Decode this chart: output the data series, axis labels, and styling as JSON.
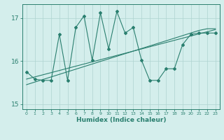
{
  "xlabel": "Humidex (Indice chaleur)",
  "ylabel": "",
  "x_values": [
    0,
    1,
    2,
    3,
    4,
    5,
    6,
    7,
    8,
    9,
    10,
    11,
    12,
    13,
    14,
    15,
    16,
    17,
    18,
    19,
    20,
    21,
    22,
    23
  ],
  "line1_y": [
    15.75,
    15.58,
    15.55,
    15.55,
    16.62,
    15.55,
    16.78,
    17.05,
    16.02,
    17.12,
    16.28,
    17.15,
    16.65,
    16.78,
    16.02,
    15.55,
    15.55,
    15.82,
    15.82,
    16.38,
    16.62,
    16.65,
    16.65,
    16.65
  ],
  "line2_y": [
    15.58,
    15.63,
    15.68,
    15.73,
    15.78,
    15.83,
    15.88,
    15.93,
    15.98,
    16.03,
    16.08,
    16.13,
    16.18,
    16.23,
    16.28,
    16.33,
    16.38,
    16.43,
    16.48,
    16.53,
    16.58,
    16.63,
    16.68,
    16.73
  ],
  "line3_y": [
    15.45,
    15.51,
    15.57,
    15.63,
    15.69,
    15.75,
    15.81,
    15.87,
    15.93,
    15.99,
    16.05,
    16.11,
    16.17,
    16.23,
    16.29,
    16.35,
    16.41,
    16.47,
    16.53,
    16.59,
    16.65,
    16.71,
    16.75,
    16.75
  ],
  "line_color": "#2a7f6f",
  "bg_color": "#d4eeec",
  "grid_color": "#aed4d0",
  "ylim": [
    14.88,
    17.32
  ],
  "xlim": [
    -0.5,
    23.5
  ],
  "yticks": [
    15,
    16,
    17
  ],
  "xticks": [
    0,
    1,
    2,
    3,
    4,
    5,
    6,
    7,
    8,
    9,
    10,
    11,
    12,
    13,
    14,
    15,
    16,
    17,
    18,
    19,
    20,
    21,
    22,
    23
  ]
}
